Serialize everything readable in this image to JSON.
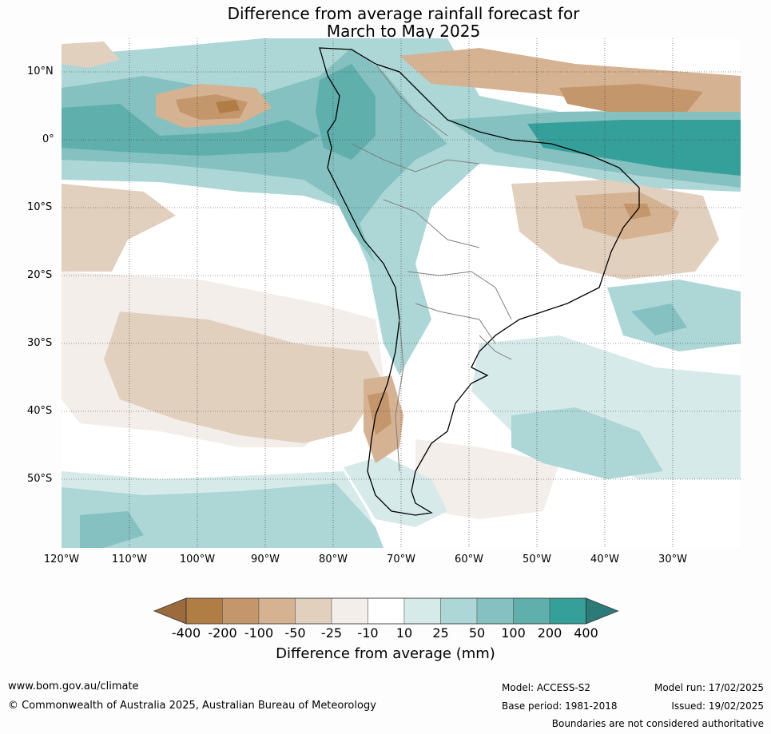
{
  "title_line1": "Difference from average rainfall forecast for",
  "title_line2": "March to May 2025",
  "latitude_labels": [
    "10°N",
    "0°",
    "10°S",
    "20°S",
    "30°S",
    "40°S",
    "50°S"
  ],
  "longitude_labels": [
    "120°W",
    "110°W",
    "100°W",
    "90°W",
    "80°W",
    "70°W",
    "60°W",
    "50°W",
    "40°W",
    "30°W"
  ],
  "legend": {
    "title": "Difference from average (mm)",
    "tick_labels": [
      "-400",
      "-200",
      "-100",
      "-50",
      "-25",
      "-10",
      "10",
      "25",
      "50",
      "100",
      "200",
      "400"
    ],
    "colors": [
      "#9b6a3d",
      "#b07d45",
      "#c4966c",
      "#d4b292",
      "#e2d0bf",
      "#f3eee9",
      "#ffffff",
      "#d6eae9",
      "#acd7d6",
      "#85c1c0",
      "#5fafad",
      "#35a09a",
      "#2c7b78"
    ]
  },
  "footer": {
    "website": "www.bom.gov.au/climate",
    "copyright": "© Commonwealth of Australia 2025, Australian Bureau of Meteorology",
    "model": "Model: ACCESS-S2",
    "base_period": "Base period: 1981-2018",
    "model_run": "Model run: 17/02/2025",
    "issued": "Issued: 19/02/2025",
    "disclaimer": "Boundaries are not considered authoritative"
  }
}
